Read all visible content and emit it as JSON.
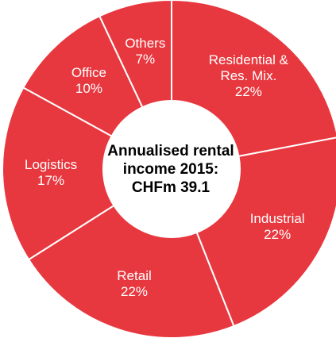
{
  "chart_data": {
    "type": "donut",
    "title": "Annualised rental income 2015: CHFm 39.1",
    "categories": [
      "Residential & Res. Mix.",
      "Industrial",
      "Retail",
      "Logistics",
      "Office",
      "Others"
    ],
    "values": [
      22,
      22,
      22,
      17,
      10,
      7
    ],
    "value_labels": [
      "22%",
      "22%",
      "22%",
      "17%",
      "10%",
      "7%"
    ],
    "color": "#e8383f"
  }
}
